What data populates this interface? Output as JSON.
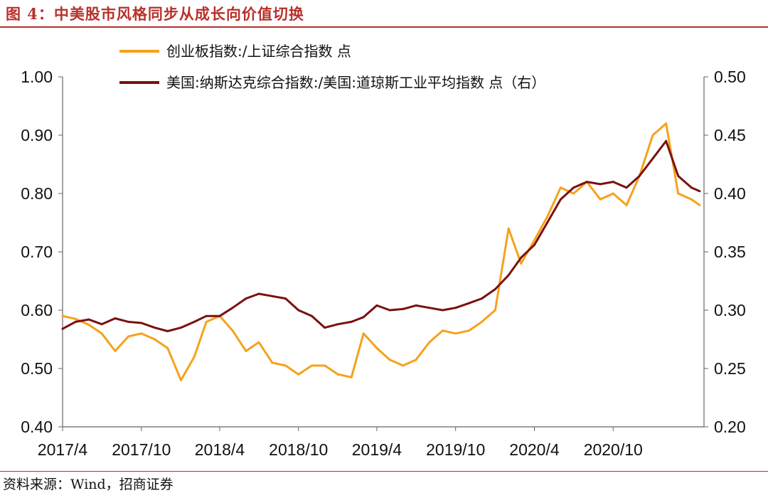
{
  "header": {
    "title": "图 4：中美股市风格同步从成长向价值切换"
  },
  "footer": {
    "source": "资料来源：Wind，招商证券"
  },
  "chart_data": {
    "type": "line",
    "title": "图 4：中美股市风格同步从成长向价值切换",
    "xlabel": "",
    "ylabel_left": "",
    "ylabel_right": "",
    "x_tick_labels": [
      "2017/4",
      "2017/10",
      "2018/4",
      "2018/10",
      "2019/4",
      "2019/10",
      "2020/4",
      "2020/10"
    ],
    "x_tick_dates": [
      "2017-04-01",
      "2017-10-01",
      "2018-04-01",
      "2018-10-01",
      "2019-04-01",
      "2019-10-01",
      "2020-04-01",
      "2020-10-01"
    ],
    "x_range": [
      "2017-04-01",
      "2021-04-30"
    ],
    "y_left": {
      "range": [
        0.4,
        1.0
      ],
      "ticks": [
        "0.40",
        "0.50",
        "0.60",
        "0.70",
        "0.80",
        "0.90",
        "1.00"
      ]
    },
    "y_right": {
      "range": [
        0.2,
        0.5
      ],
      "ticks": [
        "0.20",
        "0.25",
        "0.30",
        "0.35",
        "0.40",
        "0.45",
        "0.50"
      ]
    },
    "legend_position": "top",
    "grid": false,
    "series": [
      {
        "name": "创业板指数:/上证综合指数 点",
        "axis": "left",
        "color": "#f5a21b",
        "points": [
          [
            "2017-04-01",
            0.59
          ],
          [
            "2017-05-01",
            0.585
          ],
          [
            "2017-06-01",
            0.575
          ],
          [
            "2017-07-01",
            0.56
          ],
          [
            "2017-08-01",
            0.53
          ],
          [
            "2017-09-01",
            0.555
          ],
          [
            "2017-10-01",
            0.56
          ],
          [
            "2017-11-01",
            0.55
          ],
          [
            "2017-12-01",
            0.535
          ],
          [
            "2018-01-01",
            0.48
          ],
          [
            "2018-02-01",
            0.52
          ],
          [
            "2018-03-01",
            0.58
          ],
          [
            "2018-04-01",
            0.59
          ],
          [
            "2018-05-01",
            0.565
          ],
          [
            "2018-06-01",
            0.53
          ],
          [
            "2018-07-01",
            0.545
          ],
          [
            "2018-08-01",
            0.51
          ],
          [
            "2018-09-01",
            0.505
          ],
          [
            "2018-10-01",
            0.49
          ],
          [
            "2018-11-01",
            0.505
          ],
          [
            "2018-12-01",
            0.505
          ],
          [
            "2019-01-01",
            0.49
          ],
          [
            "2019-02-01",
            0.485
          ],
          [
            "2019-03-01",
            0.56
          ],
          [
            "2019-04-01",
            0.535
          ],
          [
            "2019-05-01",
            0.515
          ],
          [
            "2019-06-01",
            0.505
          ],
          [
            "2019-07-01",
            0.515
          ],
          [
            "2019-08-01",
            0.545
          ],
          [
            "2019-09-01",
            0.565
          ],
          [
            "2019-10-01",
            0.56
          ],
          [
            "2019-11-01",
            0.565
          ],
          [
            "2019-12-01",
            0.58
          ],
          [
            "2020-01-01",
            0.6
          ],
          [
            "2020-02-01",
            0.74
          ],
          [
            "2020-03-01",
            0.68
          ],
          [
            "2020-04-01",
            0.72
          ],
          [
            "2020-05-01",
            0.76
          ],
          [
            "2020-06-01",
            0.81
          ],
          [
            "2020-07-01",
            0.8
          ],
          [
            "2020-08-01",
            0.82
          ],
          [
            "2020-09-01",
            0.79
          ],
          [
            "2020-10-01",
            0.8
          ],
          [
            "2020-11-01",
            0.78
          ],
          [
            "2020-12-01",
            0.83
          ],
          [
            "2021-01-01",
            0.9
          ],
          [
            "2021-02-01",
            0.92
          ],
          [
            "2021-03-01",
            0.8
          ],
          [
            "2021-04-01",
            0.79
          ],
          [
            "2021-04-20",
            0.78
          ]
        ]
      },
      {
        "name": "美国:纳斯达克综合指数:/美国:道琼斯工业平均指数 点（右）",
        "axis": "right",
        "color": "#7a1111",
        "points": [
          [
            "2017-04-01",
            0.284
          ],
          [
            "2017-05-01",
            0.29
          ],
          [
            "2017-06-01",
            0.292
          ],
          [
            "2017-07-01",
            0.288
          ],
          [
            "2017-08-01",
            0.293
          ],
          [
            "2017-09-01",
            0.29
          ],
          [
            "2017-10-01",
            0.289
          ],
          [
            "2017-11-01",
            0.285
          ],
          [
            "2017-12-01",
            0.282
          ],
          [
            "2018-01-01",
            0.285
          ],
          [
            "2018-02-01",
            0.29
          ],
          [
            "2018-03-01",
            0.295
          ],
          [
            "2018-04-01",
            0.295
          ],
          [
            "2018-05-01",
            0.302
          ],
          [
            "2018-06-01",
            0.31
          ],
          [
            "2018-07-01",
            0.314
          ],
          [
            "2018-08-01",
            0.312
          ],
          [
            "2018-09-01",
            0.31
          ],
          [
            "2018-10-01",
            0.3
          ],
          [
            "2018-11-01",
            0.295
          ],
          [
            "2018-12-01",
            0.285
          ],
          [
            "2019-01-01",
            0.288
          ],
          [
            "2019-02-01",
            0.29
          ],
          [
            "2019-03-01",
            0.294
          ],
          [
            "2019-04-01",
            0.304
          ],
          [
            "2019-05-01",
            0.3
          ],
          [
            "2019-06-01",
            0.301
          ],
          [
            "2019-07-01",
            0.304
          ],
          [
            "2019-08-01",
            0.302
          ],
          [
            "2019-09-01",
            0.3
          ],
          [
            "2019-10-01",
            0.302
          ],
          [
            "2019-11-01",
            0.306
          ],
          [
            "2019-12-01",
            0.31
          ],
          [
            "2020-01-01",
            0.318
          ],
          [
            "2020-02-01",
            0.33
          ],
          [
            "2020-03-01",
            0.345
          ],
          [
            "2020-04-01",
            0.356
          ],
          [
            "2020-05-01",
            0.375
          ],
          [
            "2020-06-01",
            0.395
          ],
          [
            "2020-07-01",
            0.405
          ],
          [
            "2020-08-01",
            0.41
          ],
          [
            "2020-09-01",
            0.408
          ],
          [
            "2020-10-01",
            0.41
          ],
          [
            "2020-11-01",
            0.405
          ],
          [
            "2020-12-01",
            0.415
          ],
          [
            "2021-01-01",
            0.43
          ],
          [
            "2021-02-01",
            0.445
          ],
          [
            "2021-03-01",
            0.415
          ],
          [
            "2021-04-01",
            0.405
          ],
          [
            "2021-04-20",
            0.402
          ]
        ]
      }
    ]
  }
}
